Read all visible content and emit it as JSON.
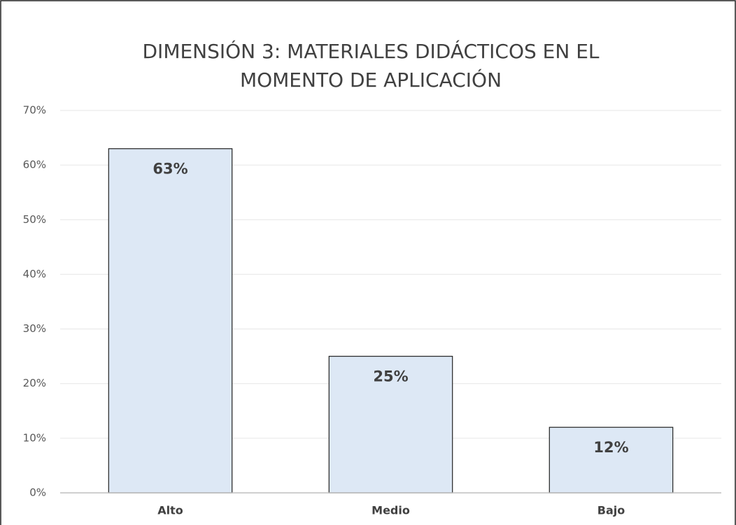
{
  "chart_data": {
    "type": "bar",
    "title": [
      "DIMENSIÓN 3: MATERIALES DIDÁCTICOS EN EL",
      "MOMENTO DE APLICACIÓN"
    ],
    "categories": [
      "Alto",
      "Medio",
      "Bajo"
    ],
    "values": [
      63,
      25,
      12
    ],
    "value_labels": [
      "63%",
      "25%",
      "12%"
    ],
    "color": "#dde8f5",
    "ylim": [
      0,
      70
    ],
    "yticks": [
      {
        "value": 0,
        "label": "0%"
      },
      {
        "value": 10,
        "label": "10%"
      },
      {
        "value": 20,
        "label": "20%"
      },
      {
        "value": 30,
        "label": "30%"
      },
      {
        "value": 40,
        "label": "40%"
      },
      {
        "value": 50,
        "label": "50%"
      },
      {
        "value": 60,
        "label": "60%"
      },
      {
        "value": 70,
        "label": "70%"
      }
    ],
    "grid": true
  }
}
